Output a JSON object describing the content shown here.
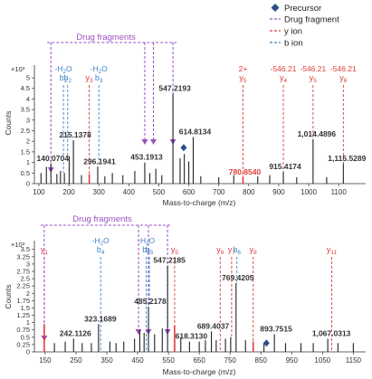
{
  "colors": {
    "purple": "#9b4fc0",
    "red": "#e03c3c",
    "blue": "#3d84c6",
    "precursor": "#2c4f8a",
    "peak_black": "#222222",
    "axis": "#333333"
  },
  "legend": {
    "items": [
      {
        "label": "Precursor",
        "symbol": "diamond",
        "color": "#2c4f8a"
      },
      {
        "label": "Drug fragment",
        "symbol": "dash",
        "color": "#9b4fc0"
      },
      {
        "label": "y ion",
        "symbol": "dash",
        "color": "#e03c3c"
      },
      {
        "label": "b ion",
        "symbol": "dash",
        "color": "#3d84c6"
      }
    ]
  },
  "chart_data": [
    {
      "type": "bar",
      "title": "",
      "xlabel": "Mass-to-charge (m/z)",
      "ylabel": "Counts",
      "y_multiplier": "×10³",
      "xlim": [
        85,
        1190
      ],
      "ylim": [
        0,
        5.6
      ],
      "x_ticks": [
        100,
        200,
        300,
        400,
        500,
        600,
        700,
        800,
        900,
        1000,
        1100
      ],
      "y_ticks": [
        0,
        0.5,
        1,
        1.5,
        2,
        2.5,
        3,
        3.5,
        4,
        4.5,
        5
      ],
      "bracket_label": "Drug fragments",
      "peaks": [
        {
          "mz": 107,
          "intensity": 0.5,
          "color": "black"
        },
        {
          "mz": 125,
          "intensity": 0.8,
          "color": "black"
        },
        {
          "mz": 140.0704,
          "intensity": 0.95,
          "color": "black",
          "label": "140.0704"
        },
        {
          "mz": 160,
          "intensity": 0.45,
          "color": "black"
        },
        {
          "mz": 172,
          "intensity": 0.6,
          "color": "black"
        },
        {
          "mz": 185,
          "intensity": 0.5,
          "color": "black"
        },
        {
          "mz": 201,
          "intensity": 1.3,
          "color": "black"
        },
        {
          "mz": 215.1378,
          "intensity": 2.05,
          "color": "black",
          "label": "215.1378"
        },
        {
          "mz": 242,
          "intensity": 0.4,
          "color": "black"
        },
        {
          "mz": 268,
          "intensity": 0.45,
          "color": "red"
        },
        {
          "mz": 296.1941,
          "intensity": 0.8,
          "color": "black",
          "label": "296.1941"
        },
        {
          "mz": 320,
          "intensity": 0.35,
          "color": "black"
        },
        {
          "mz": 345,
          "intensity": 0.5,
          "color": "black"
        },
        {
          "mz": 380,
          "intensity": 0.4,
          "color": "black"
        },
        {
          "mz": 420,
          "intensity": 0.6,
          "color": "black"
        },
        {
          "mz": 453.1913,
          "intensity": 1.0,
          "color": "black",
          "label": "453.1913"
        },
        {
          "mz": 470,
          "intensity": 0.5,
          "color": "black"
        },
        {
          "mz": 490,
          "intensity": 0.7,
          "color": "black"
        },
        {
          "mz": 510,
          "intensity": 0.4,
          "color": "black"
        },
        {
          "mz": 547.2193,
          "intensity": 4.25,
          "color": "black",
          "label": "547.2193"
        },
        {
          "mz": 571,
          "intensity": 1.2,
          "color": "black"
        },
        {
          "mz": 585,
          "intensity": 1.4,
          "color": "black"
        },
        {
          "mz": 600,
          "intensity": 1.05,
          "color": "black"
        },
        {
          "mz": 614.8134,
          "intensity": 2.2,
          "color": "black",
          "label": "614.8134"
        },
        {
          "mz": 640,
          "intensity": 0.35,
          "color": "black"
        },
        {
          "mz": 700,
          "intensity": 0.3,
          "color": "black"
        },
        {
          "mz": 750,
          "intensity": 0.4,
          "color": "black"
        },
        {
          "mz": 780.854,
          "intensity": 0.3,
          "color": "red",
          "label": "780.8540"
        },
        {
          "mz": 830,
          "intensity": 0.35,
          "color": "black"
        },
        {
          "mz": 870,
          "intensity": 0.4,
          "color": "black"
        },
        {
          "mz": 915.4174,
          "intensity": 0.55,
          "color": "black",
          "label": "915.4174"
        },
        {
          "mz": 960,
          "intensity": 0.3,
          "color": "black"
        },
        {
          "mz": 1014.4896,
          "intensity": 2.1,
          "color": "black",
          "label": "1,014.4896"
        },
        {
          "mz": 1060,
          "intensity": 0.3,
          "color": "black"
        },
        {
          "mz": 1115.5289,
          "intensity": 0.95,
          "color": "black",
          "label": "1,115.5289"
        }
      ],
      "precursor": {
        "mz": 583,
        "intensity": 1.7
      },
      "drug_fragment_markers": [
        140.07,
        453.19,
        482,
        547.22
      ],
      "ion_annotations": [
        {
          "mz": 182,
          "ion": "b",
          "sub": "2",
          "color": "blue",
          "top": "-H2O"
        },
        {
          "mz": 196,
          "ion": "b",
          "sub": "2",
          "color": "blue"
        },
        {
          "mz": 268,
          "ion": "y",
          "sub": "3",
          "color": "red"
        },
        {
          "mz": 300,
          "ion": "b",
          "sub": "3",
          "color": "blue",
          "top": "-H2O"
        },
        {
          "mz": 780.854,
          "ion": "y",
          "sub": "5",
          "color": "red",
          "top": "2+"
        },
        {
          "mz": 915.4174,
          "ion": "y",
          "sub": "4",
          "color": "red",
          "top": "-546.21"
        },
        {
          "mz": 1014.4896,
          "ion": "y",
          "sub": "5",
          "color": "red",
          "top": "-546.21"
        },
        {
          "mz": 1115.5289,
          "ion": "y",
          "sub": "6",
          "color": "red",
          "top": "-546.21"
        }
      ]
    },
    {
      "type": "bar",
      "title": "",
      "xlabel": "Mass-to-charge (m/z)",
      "ylabel": "Counts",
      "y_multiplier": "×10³",
      "xlim": [
        115,
        1190
      ],
      "ylim": [
        0,
        3.8
      ],
      "x_ticks": [
        150,
        250,
        350,
        450,
        550,
        650,
        750,
        850,
        950,
        1050,
        1150
      ],
      "y_ticks": [
        0,
        0.25,
        0.5,
        0.75,
        1,
        1.25,
        1.5,
        1.75,
        2,
        2.25,
        2.5,
        2.75,
        3,
        3.25,
        3.5
      ],
      "bracket_label": "Drug fragments",
      "peaks": [
        {
          "mz": 147,
          "intensity": 0.95,
          "color": "red"
        },
        {
          "mz": 180,
          "intensity": 0.3,
          "color": "black"
        },
        {
          "mz": 215,
          "intensity": 0.35,
          "color": "black"
        },
        {
          "mz": 242.1126,
          "intensity": 0.45,
          "color": "black",
          "label": "242.1126"
        },
        {
          "mz": 270,
          "intensity": 0.3,
          "color": "black"
        },
        {
          "mz": 300,
          "intensity": 0.3,
          "color": "black"
        },
        {
          "mz": 323.1689,
          "intensity": 0.95,
          "color": "black",
          "label": "323.1689"
        },
        {
          "mz": 360,
          "intensity": 0.35,
          "color": "black"
        },
        {
          "mz": 380,
          "intensity": 0.3,
          "color": "black"
        },
        {
          "mz": 405,
          "intensity": 0.35,
          "color": "black"
        },
        {
          "mz": 440,
          "intensity": 0.45,
          "color": "black"
        },
        {
          "mz": 457,
          "intensity": 0.75,
          "color": "black"
        },
        {
          "mz": 471,
          "intensity": 0.65,
          "color": "black"
        },
        {
          "mz": 485.2178,
          "intensity": 1.55,
          "color": "black",
          "label": "485.2178"
        },
        {
          "mz": 505,
          "intensity": 0.6,
          "color": "black"
        },
        {
          "mz": 530,
          "intensity": 0.8,
          "color": "black"
        },
        {
          "mz": 547.2185,
          "intensity": 2.95,
          "color": "black",
          "label": "547.2185"
        },
        {
          "mz": 570,
          "intensity": 0.9,
          "color": "red"
        },
        {
          "mz": 590,
          "intensity": 0.5,
          "color": "black"
        },
        {
          "mz": 618.313,
          "intensity": 0.35,
          "color": "black",
          "label": "618.3130"
        },
        {
          "mz": 650,
          "intensity": 0.35,
          "color": "black"
        },
        {
          "mz": 670,
          "intensity": 0.4,
          "color": "black"
        },
        {
          "mz": 689.4037,
          "intensity": 0.7,
          "color": "black",
          "label": "689.4037"
        },
        {
          "mz": 705,
          "intensity": 0.4,
          "color": "black"
        },
        {
          "mz": 735,
          "intensity": 0.45,
          "color": "black"
        },
        {
          "mz": 752,
          "intensity": 0.5,
          "color": "black"
        },
        {
          "mz": 769.4205,
          "intensity": 2.35,
          "color": "black",
          "label": "769.4205"
        },
        {
          "mz": 800,
          "intensity": 0.4,
          "color": "black"
        },
        {
          "mz": 825,
          "intensity": 0.35,
          "color": "red"
        },
        {
          "mz": 860,
          "intensity": 0.3,
          "color": "black"
        },
        {
          "mz": 893.7515,
          "intensity": 0.6,
          "color": "black",
          "label": "893.7515"
        },
        {
          "mz": 930,
          "intensity": 0.3,
          "color": "black"
        },
        {
          "mz": 980,
          "intensity": 0.3,
          "color": "black"
        },
        {
          "mz": 1020,
          "intensity": 0.3,
          "color": "black"
        },
        {
          "mz": 1067.0313,
          "intensity": 0.45,
          "color": "black",
          "label": "1,067.0313"
        },
        {
          "mz": 1100,
          "intensity": 0.3,
          "color": "black"
        },
        {
          "mz": 1150,
          "intensity": 0.3,
          "color": "black"
        }
      ],
      "precursor": {
        "mz": 868,
        "intensity": 0.3
      },
      "drug_fragment_markers": [
        147,
        453,
        485,
        547
      ],
      "ion_annotations": [
        {
          "mz": 147,
          "ion": "y",
          "sub": "1",
          "color": "red"
        },
        {
          "mz": 330,
          "ion": "b",
          "sub": "4",
          "color": "blue",
          "top": "-H2O"
        },
        {
          "mz": 478,
          "ion": "b",
          "sub": "5",
          "color": "blue",
          "top": "-H2O"
        },
        {
          "mz": 488,
          "ion": "b",
          "sub": "5",
          "color": "blue"
        },
        {
          "mz": 570,
          "ion": "y",
          "sub": "5",
          "color": "red"
        },
        {
          "mz": 718,
          "ion": "y",
          "sub": "6",
          "color": "red"
        },
        {
          "mz": 755,
          "ion": "y",
          "sub": "7",
          "color": "red"
        },
        {
          "mz": 772,
          "ion": "b",
          "sub": "6",
          "color": "blue"
        },
        {
          "mz": 825,
          "ion": "y",
          "sub": "8",
          "color": "red"
        },
        {
          "mz": 1080,
          "ion": "y",
          "sub": "11",
          "color": "red"
        }
      ]
    }
  ]
}
